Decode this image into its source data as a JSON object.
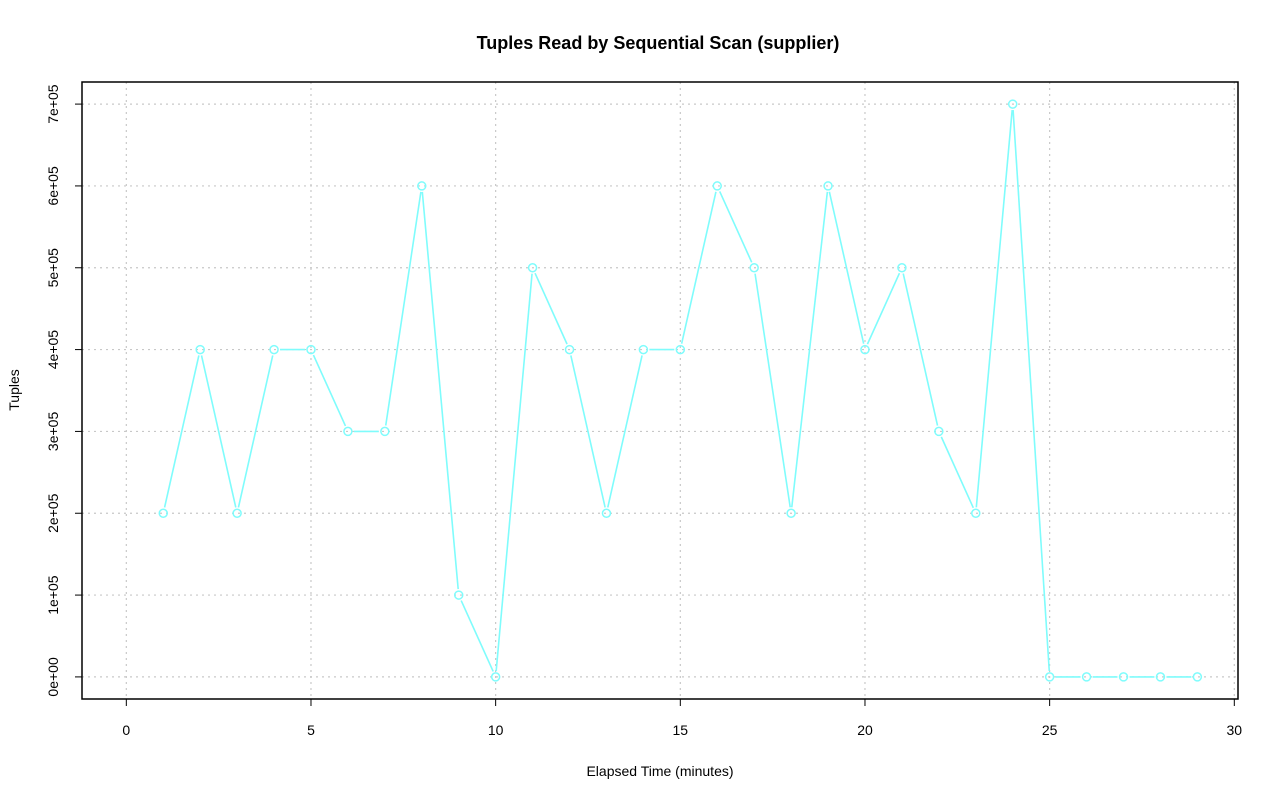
{
  "chart_data": {
    "type": "line",
    "title": "Tuples Read by Sequential Scan (supplier)",
    "xlabel": "Elapsed Time (minutes)",
    "ylabel": "Tuples",
    "xlim": [
      -1.2,
      30.1
    ],
    "ylim": [
      -27000,
      727000
    ],
    "x_ticks": [
      0,
      5,
      10,
      15,
      20,
      25,
      30
    ],
    "x_tick_labels": [
      "0",
      "5",
      "10",
      "15",
      "20",
      "25",
      "30"
    ],
    "y_ticks": [
      0,
      100000,
      200000,
      300000,
      400000,
      500000,
      600000,
      700000
    ],
    "y_tick_labels": [
      "0e+00",
      "1e+05",
      "2e+05",
      "3e+05",
      "4e+05",
      "5e+05",
      "6e+05",
      "7e+05"
    ],
    "grid": true,
    "line_color": "#7ffcfc",
    "marker": "open-circle",
    "series": [
      {
        "x": [
          1,
          2,
          3,
          4,
          5,
          6,
          7,
          8,
          9,
          10,
          11,
          12,
          13,
          14,
          15,
          16,
          17,
          18,
          19,
          20,
          21,
          22,
          23,
          24,
          25,
          26,
          27,
          28,
          29
        ],
        "values": [
          200000,
          400000,
          200000,
          400000,
          400000,
          300000,
          300000,
          600000,
          100000,
          0,
          500000,
          400000,
          200000,
          400000,
          400000,
          600000,
          500000,
          200000,
          600000,
          400000,
          500000,
          300000,
          200000,
          700000,
          0,
          0,
          0,
          0,
          0
        ]
      }
    ]
  }
}
